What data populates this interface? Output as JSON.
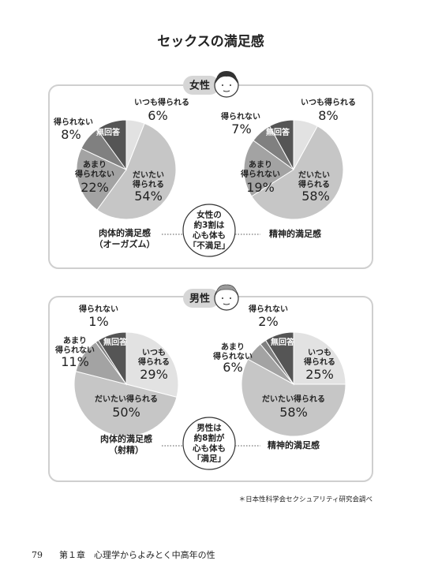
{
  "title": "セックスの満足感",
  "panels": [
    {
      "label": "女性",
      "note": "女性の\n約3割は\n心も体も\n「不満足」"
    },
    {
      "label": "男性",
      "note": "男性は\n約8割が\n心も体も\n「満足」"
    }
  ],
  "source": "＊日本性科学会セクシュアリティ研究会調べ",
  "footer": {
    "page": "79",
    "chapter": "第１章　心理学からよみとく中高年の性"
  },
  "chart_data": [
    {
      "type": "pie",
      "title": "肉体的満足感\n（オーガズム）",
      "categories": [
        "いつも得られる",
        "だいたい\n得られる",
        "あまり\n得られない",
        "得られない",
        "無回答"
      ],
      "values": [
        6,
        54,
        22,
        8,
        10
      ],
      "value_labels": [
        "6%",
        "54%",
        "22%",
        "8%",
        null
      ],
      "colors": [
        "#e2e2e2",
        "#c6c6c6",
        "#a3a3a3",
        "#808080",
        "#555555"
      ]
    },
    {
      "type": "pie",
      "title": "精神的満足感",
      "categories": [
        "いつも得られる",
        "だいたい\n得られる",
        "あまり\n得られない",
        "得られない",
        "無回答"
      ],
      "values": [
        8,
        58,
        19,
        7,
        8
      ],
      "value_labels": [
        "8%",
        "58%",
        "19%",
        "7%",
        null
      ],
      "colors": [
        "#e2e2e2",
        "#c6c6c6",
        "#a3a3a3",
        "#808080",
        "#555555"
      ]
    },
    {
      "type": "pie",
      "title": "肉体的満足感\n（射精）",
      "categories": [
        "いつも\n得られる",
        "だいたい得られる",
        "あまり\n得られない",
        "得られない",
        "無回答"
      ],
      "values": [
        29,
        50,
        11,
        1,
        9
      ],
      "value_labels": [
        "29%",
        "50%",
        "11%",
        "1%",
        null
      ],
      "colors": [
        "#e2e2e2",
        "#c6c6c6",
        "#a3a3a3",
        "#808080",
        "#555555"
      ]
    },
    {
      "type": "pie",
      "title": "精神的満足感",
      "categories": [
        "いつも\n得られる",
        "だいたい得られる",
        "あまり\n得られない",
        "得られない",
        "無回答"
      ],
      "values": [
        25,
        58,
        6,
        2,
        9
      ],
      "value_labels": [
        "25%",
        "58%",
        "6%",
        "2%",
        null
      ],
      "colors": [
        "#e2e2e2",
        "#c6c6c6",
        "#a3a3a3",
        "#808080",
        "#555555"
      ]
    }
  ]
}
